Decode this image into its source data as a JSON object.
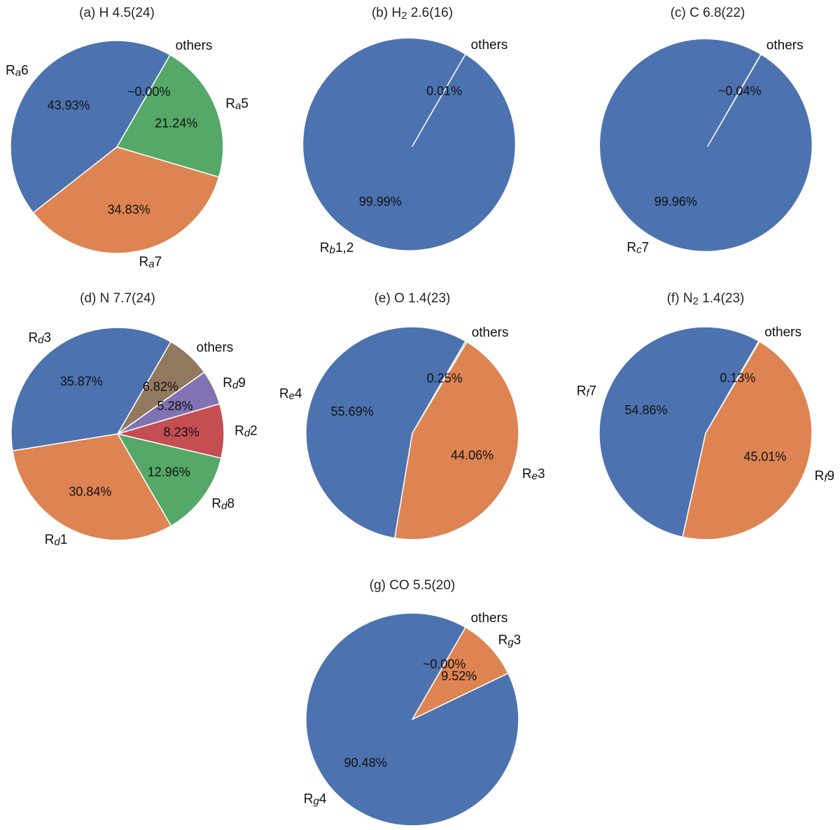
{
  "chart_data": [
    {
      "type": "pie",
      "title": "(a) H 4.5(24)",
      "title_parts": [
        {
          "t": "(a) H 4.5(24)"
        }
      ],
      "slices": [
        {
          "label": "others",
          "label_parts": [
            {
              "t": "others"
            }
          ],
          "value": 0.0,
          "pct_text": "~0.00%",
          "color": "#55a868"
        },
        {
          "label": "Ra5",
          "label_parts": [
            {
              "t": "R"
            },
            {
              "t": "a",
              "sub": true
            },
            {
              "t": "5"
            }
          ],
          "value": 21.24,
          "pct_text": "21.24%",
          "color": "#55a868"
        },
        {
          "label": "Ra7",
          "label_parts": [
            {
              "t": "R"
            },
            {
              "t": "a",
              "sub": true
            },
            {
              "t": "7"
            }
          ],
          "value": 34.83,
          "pct_text": "34.83%",
          "color": "#dd8452"
        },
        {
          "label": "Ra6",
          "label_parts": [
            {
              "t": "R"
            },
            {
              "t": "a",
              "sub": true
            },
            {
              "t": "6"
            }
          ],
          "value": 43.93,
          "pct_text": "43.93%",
          "color": "#4c72b0"
        }
      ]
    },
    {
      "type": "pie",
      "title": "(b) H2 2.6(16)",
      "title_parts": [
        {
          "t": "(b) H"
        },
        {
          "t": "2",
          "sub": true
        },
        {
          "t": " 2.6(16)"
        }
      ],
      "slices": [
        {
          "label": "others",
          "label_parts": [
            {
              "t": "others"
            }
          ],
          "value": 0.01,
          "pct_text": "0.01%",
          "color": "#4c72b0"
        },
        {
          "label": "Rb1,2",
          "label_parts": [
            {
              "t": "R"
            },
            {
              "t": "b",
              "sub": true
            },
            {
              "t": "1,2"
            }
          ],
          "value": 99.99,
          "pct_text": "99.99%",
          "color": "#4c72b0"
        }
      ]
    },
    {
      "type": "pie",
      "title": "(c) C 6.8(22)",
      "title_parts": [
        {
          "t": "(c) C 6.8(22)"
        }
      ],
      "slices": [
        {
          "label": "others",
          "label_parts": [
            {
              "t": "others"
            }
          ],
          "value": 0.04,
          "pct_text": "~0.04%",
          "color": "#4c72b0"
        },
        {
          "label": "Rc7",
          "label_parts": [
            {
              "t": "R"
            },
            {
              "t": "c",
              "sub": true
            },
            {
              "t": "7"
            }
          ],
          "value": 99.96,
          "pct_text": "99.96%",
          "color": "#4c72b0"
        }
      ]
    },
    {
      "type": "pie",
      "title": "(d) N 7.7(24)",
      "title_parts": [
        {
          "t": "(d) N 7.7(24)"
        }
      ],
      "slices": [
        {
          "label": "others",
          "label_parts": [
            {
              "t": "others"
            }
          ],
          "value": 6.82,
          "pct_text": "6.82%",
          "color": "#937860"
        },
        {
          "label": "Rd9",
          "label_parts": [
            {
              "t": "R"
            },
            {
              "t": "d",
              "sub": true
            },
            {
              "t": "9"
            }
          ],
          "value": 5.28,
          "pct_text": "5.28%",
          "color": "#8172b3"
        },
        {
          "label": "Rd2",
          "label_parts": [
            {
              "t": "R"
            },
            {
              "t": "d",
              "sub": true
            },
            {
              "t": "2"
            }
          ],
          "value": 8.23,
          "pct_text": "8.23%",
          "color": "#c44e52"
        },
        {
          "label": "Rd8",
          "label_parts": [
            {
              "t": "R"
            },
            {
              "t": "d",
              "sub": true
            },
            {
              "t": "8"
            }
          ],
          "value": 12.96,
          "pct_text": "12.96%",
          "color": "#55a868"
        },
        {
          "label": "Rd1",
          "label_parts": [
            {
              "t": "R"
            },
            {
              "t": "d",
              "sub": true
            },
            {
              "t": "1"
            }
          ],
          "value": 30.84,
          "pct_text": "30.84%",
          "color": "#dd8452"
        },
        {
          "label": "Rd3",
          "label_parts": [
            {
              "t": "R"
            },
            {
              "t": "d",
              "sub": true
            },
            {
              "t": "3"
            }
          ],
          "value": 35.87,
          "pct_text": "35.87%",
          "color": "#4c72b0"
        }
      ]
    },
    {
      "type": "pie",
      "title": "(e) O 1.4(23)",
      "title_parts": [
        {
          "t": "(e) O 1.4(23)"
        }
      ],
      "slices": [
        {
          "label": "others",
          "label_parts": [
            {
              "t": "others"
            }
          ],
          "value": 0.25,
          "pct_text": "0.25%",
          "color": "#55a868"
        },
        {
          "label": "Re3",
          "label_parts": [
            {
              "t": "R"
            },
            {
              "t": "e",
              "sub": true
            },
            {
              "t": "3"
            }
          ],
          "value": 44.06,
          "pct_text": "44.06%",
          "color": "#dd8452"
        },
        {
          "label": "Re4",
          "label_parts": [
            {
              "t": "R"
            },
            {
              "t": "e",
              "sub": true
            },
            {
              "t": "4"
            }
          ],
          "value": 55.69,
          "pct_text": "55.69%",
          "color": "#4c72b0"
        }
      ]
    },
    {
      "type": "pie",
      "title": "(f) N2 1.4(23)",
      "title_parts": [
        {
          "t": "(f) N"
        },
        {
          "t": "2",
          "sub": true
        },
        {
          "t": " 1.4(23)"
        }
      ],
      "slices": [
        {
          "label": "others",
          "label_parts": [
            {
              "t": "others"
            }
          ],
          "value": 0.13,
          "pct_text": "0.13%",
          "color": "#55a868"
        },
        {
          "label": "Rf9",
          "label_parts": [
            {
              "t": "R"
            },
            {
              "t": "f",
              "sub": true
            },
            {
              "t": "9"
            }
          ],
          "value": 45.01,
          "pct_text": "45.01%",
          "color": "#dd8452"
        },
        {
          "label": "Rf7",
          "label_parts": [
            {
              "t": "R"
            },
            {
              "t": "f",
              "sub": true
            },
            {
              "t": "7"
            }
          ],
          "value": 54.86,
          "pct_text": "54.86%",
          "color": "#4c72b0"
        }
      ]
    },
    {
      "type": "pie",
      "title": "(g) CO 5.5(20)",
      "title_parts": [
        {
          "t": "(g) CO 5.5(20)"
        }
      ],
      "slices": [
        {
          "label": "others",
          "label_parts": [
            {
              "t": "others"
            }
          ],
          "value": 0.0,
          "pct_text": "~0.00%",
          "color": "#55a868"
        },
        {
          "label": "Rg3",
          "label_parts": [
            {
              "t": "R"
            },
            {
              "t": "g",
              "sub": true
            },
            {
              "t": "3"
            }
          ],
          "value": 9.52,
          "pct_text": "9.52%",
          "color": "#dd8452"
        },
        {
          "label": "Rg4",
          "label_parts": [
            {
              "t": "R"
            },
            {
              "t": "g",
              "sub": true
            },
            {
              "t": "4"
            }
          ],
          "value": 90.48,
          "pct_text": "90.48%",
          "color": "#4c72b0"
        }
      ]
    }
  ]
}
